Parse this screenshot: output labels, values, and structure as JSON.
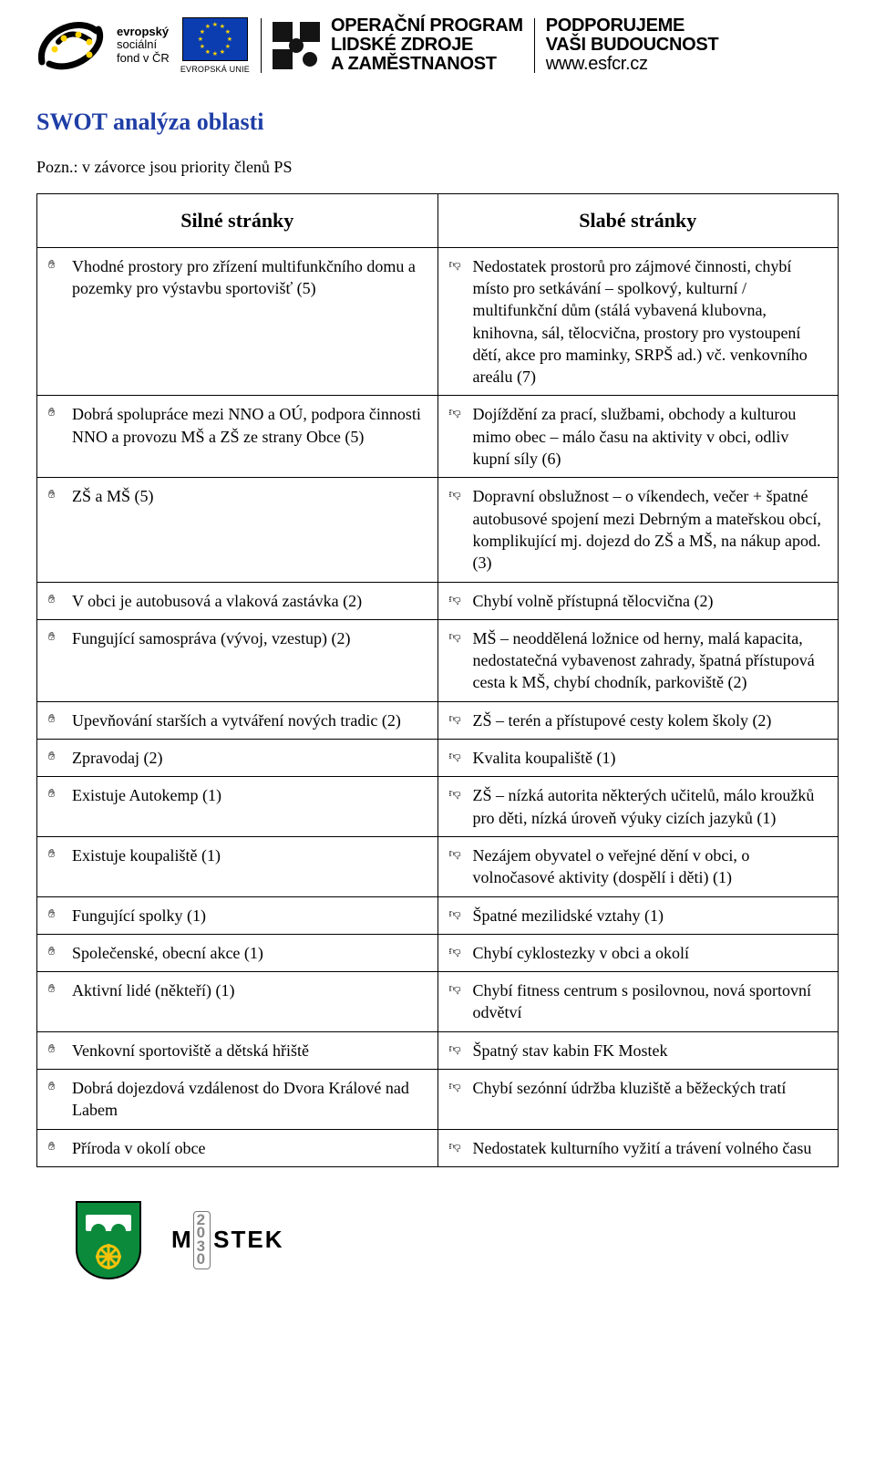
{
  "header": {
    "esf": {
      "l1": "evropský",
      "l2": "sociální",
      "l3": "fond v ČR"
    },
    "eu_caption": "EVROPSKÁ UNIE",
    "oplzz": {
      "l1": "OPERAČNÍ PROGRAM",
      "l2": "LIDSKÉ ZDROJE",
      "l3": "A ZAMĚSTNANOST"
    },
    "podp": {
      "l1": "PODPORUJEME",
      "l2": "VAŠI BUDOUCNOST",
      "site": "www.esfcr.cz"
    }
  },
  "title": "SWOT analýza oblasti",
  "note": "Pozn.: v závorce jsou priority členů PS",
  "swot": {
    "strong_header": "Silné stránky",
    "weak_header": "Slabé stránky",
    "rows": [
      {
        "strong": "Vhodné prostory pro zřízení multifunkčního domu a pozemky pro výstavbu sportovišť (5)",
        "weak": "Nedostatek prostorů pro zájmové činnosti, chybí místo pro setkávání – spolkový, kulturní / multifunkční dům (stálá vybavená klubovna, knihovna, sál, tělocvična, prostory pro vystoupení dětí, akce pro maminky, SRPŠ ad.) vč. venkovního areálu (7)"
      },
      {
        "strong": "Dobrá spolupráce mezi NNO a OÚ, podpora činnosti NNO a provozu MŠ a ZŠ ze strany Obce (5)",
        "weak": "Dojíždění za prací, službami, obchody a kulturou mimo obec – málo času na aktivity v obci, odliv kupní síly (6)"
      },
      {
        "strong": "ZŠ a MŠ (5)",
        "weak": "Dopravní obslužnost – o víkendech, večer + špatné autobusové spojení mezi Debrným a mateřskou obcí, komplikující mj. dojezd do ZŠ a MŠ, na nákup apod. (3)"
      },
      {
        "strong": "V obci je autobusová a vlaková zastávka (2)",
        "weak": "Chybí volně přístupná tělocvična (2)"
      },
      {
        "strong": "Fungující samospráva (vývoj, vzestup) (2)",
        "weak": "MŠ – neoddělená ložnice od herny, malá kapacita, nedostatečná vybavenost zahrady, špatná přístupová cesta k MŠ, chybí chodník, parkoviště (2)"
      },
      {
        "strong": "Upevňování starších a vytváření nových tradic (2)",
        "weak": "ZŠ – terén a přístupové cesty kolem školy (2)"
      },
      {
        "strong": "Zpravodaj (2)",
        "weak": "Kvalita koupaliště (1)"
      },
      {
        "strong": "Existuje Autokemp (1)",
        "weak": "ZŠ – nízká autorita některých učitelů, málo kroužků pro děti, nízká úroveň výuky cizích jazyků (1)"
      },
      {
        "strong": "Existuje koupaliště (1)",
        "weak": "Nezájem obyvatel o veřejné dění v obci, o volnočasové aktivity (dospělí i děti) (1)"
      },
      {
        "strong": "Fungující spolky (1)",
        "weak": "Špatné mezilidské vztahy (1)"
      },
      {
        "strong": "Společenské, obecní akce (1)",
        "weak": "Chybí cyklostezky v obci a okolí"
      },
      {
        "strong": "Aktivní lidé (někteří) (1)",
        "weak": "Chybí fitness centrum s posilovnou, nová sportovní odvětví"
      },
      {
        "strong": "Venkovní sportoviště a dětská hřiště",
        "weak": "Špatný stav kabin FK Mostek"
      },
      {
        "strong": "Dobrá dojezdová vzdálenost do Dvora Králové nad Labem",
        "weak": "Chybí sezónní údržba kluziště a běžeckých tratí"
      },
      {
        "strong": "Příroda v okolí obce",
        "weak": "Nedostatek kulturního vyžití a trávení volného času"
      }
    ]
  },
  "footer": {
    "brand": "M",
    "brand_rest": "STEK",
    "d1": "2",
    "d2": "0",
    "d3": "3",
    "d4": "0"
  },
  "colors": {
    "title": "#1f3ea6",
    "eu_blue": "#0b3db0",
    "eu_gold": "#ffd400",
    "crest_green": "#0a8a3a",
    "crest_yellow": "#f4c20d",
    "text": "#000000"
  }
}
